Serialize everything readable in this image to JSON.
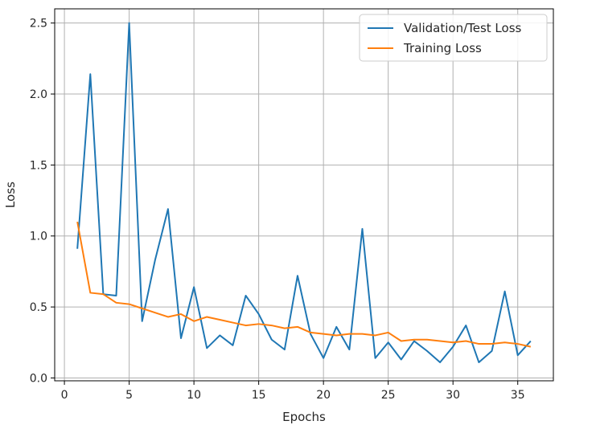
{
  "chart_data": {
    "type": "line",
    "title": "",
    "xlabel": "Epochs",
    "ylabel": "Loss",
    "xlim": [
      -0.75,
      37.75
    ],
    "ylim": [
      -0.02,
      2.6
    ],
    "xticks": [
      0,
      5,
      10,
      15,
      20,
      25,
      30,
      35
    ],
    "yticks": [
      0.0,
      0.5,
      1.0,
      1.5,
      2.0,
      2.5
    ],
    "xtick_labels": [
      "0",
      "5",
      "10",
      "15",
      "20",
      "25",
      "30",
      "35"
    ],
    "ytick_labels": [
      "0.0",
      "0.5",
      "1.0",
      "1.5",
      "2.0",
      "2.5"
    ],
    "grid": true,
    "legend_position": "top-right",
    "x": [
      1,
      2,
      3,
      4,
      5,
      6,
      7,
      8,
      9,
      10,
      11,
      12,
      13,
      14,
      15,
      16,
      17,
      18,
      19,
      20,
      21,
      22,
      23,
      24,
      25,
      26,
      27,
      28,
      29,
      30,
      31,
      32,
      33,
      34,
      35,
      36
    ],
    "series": [
      {
        "name": "Validation/Test Loss",
        "color": "#1f77b4",
        "values": [
          0.91,
          2.14,
          0.59,
          0.58,
          2.5,
          0.4,
          0.83,
          1.19,
          0.28,
          0.64,
          0.21,
          0.3,
          0.23,
          0.58,
          0.45,
          0.27,
          0.2,
          0.72,
          0.31,
          0.14,
          0.36,
          0.2,
          1.05,
          0.14,
          0.25,
          0.13,
          0.26,
          0.19,
          0.11,
          0.22,
          0.37,
          0.11,
          0.19,
          0.61,
          0.16,
          0.26
        ]
      },
      {
        "name": "Training Loss",
        "color": "#ff7f0e",
        "values": [
          1.1,
          0.6,
          0.59,
          0.53,
          0.52,
          0.49,
          0.46,
          0.43,
          0.45,
          0.4,
          0.43,
          0.41,
          0.39,
          0.37,
          0.38,
          0.37,
          0.35,
          0.36,
          0.32,
          0.31,
          0.3,
          0.31,
          0.31,
          0.3,
          0.32,
          0.26,
          0.27,
          0.27,
          0.26,
          0.25,
          0.26,
          0.24,
          0.24,
          0.25,
          0.24,
          0.22
        ]
      }
    ]
  }
}
